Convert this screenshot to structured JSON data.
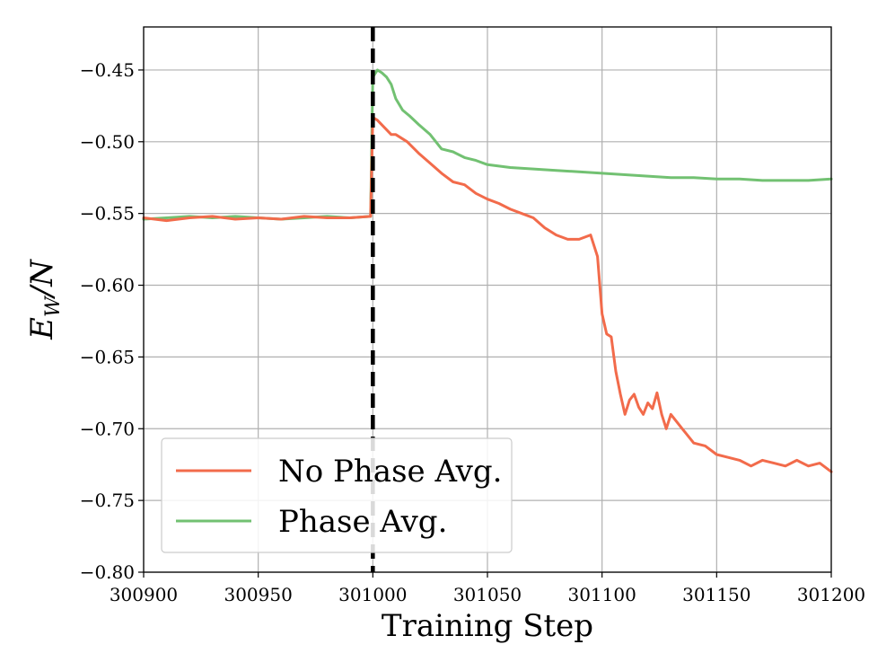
{
  "chart_data": {
    "type": "line",
    "title": "",
    "xlabel": "Training Step",
    "ylabel": "E_W/N",
    "xlim": [
      300900,
      301200
    ],
    "ylim": [
      -0.8,
      -0.42
    ],
    "xticks": [
      300900,
      300950,
      301000,
      301050,
      301100,
      301150,
      301200
    ],
    "xtick_labels": [
      "300900",
      "300950",
      "301000",
      "301050",
      "301100",
      "301150",
      "301200"
    ],
    "yticks": [
      -0.8,
      -0.75,
      -0.7,
      -0.65,
      -0.6,
      -0.55,
      -0.5,
      -0.45
    ],
    "ytick_labels": [
      "−0.80",
      "−0.75",
      "−0.70",
      "−0.65",
      "−0.60",
      "−0.55",
      "−0.50",
      "−0.45"
    ],
    "grid": true,
    "legend_position": "lower-left",
    "vline": {
      "x": 301000,
      "style": "dashed",
      "color": "#000000"
    },
    "colors": {
      "no_phase_avg": "#f26b4b",
      "phase_avg": "#72c172",
      "grid": "#b0b0b0"
    },
    "series": [
      {
        "name": "No Phase Avg.",
        "color": "#f26b4b",
        "x": [
          300900,
          300910,
          300920,
          300930,
          300940,
          300950,
          300960,
          300970,
          300980,
          300990,
          300999,
          301000,
          301002,
          301005,
          301008,
          301010,
          301015,
          301020,
          301025,
          301030,
          301035,
          301040,
          301045,
          301050,
          301055,
          301060,
          301065,
          301070,
          301075,
          301080,
          301085,
          301090,
          301095,
          301098,
          301100,
          301102,
          301104,
          301106,
          301108,
          301110,
          301112,
          301114,
          301116,
          301118,
          301120,
          301122,
          301124,
          301126,
          301128,
          301130,
          301135,
          301140,
          301145,
          301150,
          301155,
          301160,
          301165,
          301170,
          301175,
          301180,
          301185,
          301190,
          301195,
          301200
        ],
        "y": [
          -0.553,
          -0.555,
          -0.553,
          -0.552,
          -0.554,
          -0.553,
          -0.554,
          -0.552,
          -0.553,
          -0.553,
          -0.552,
          -0.483,
          -0.485,
          -0.49,
          -0.495,
          -0.495,
          -0.5,
          -0.508,
          -0.515,
          -0.522,
          -0.528,
          -0.53,
          -0.536,
          -0.54,
          -0.543,
          -0.547,
          -0.55,
          -0.553,
          -0.56,
          -0.565,
          -0.568,
          -0.568,
          -0.565,
          -0.58,
          -0.62,
          -0.634,
          -0.636,
          -0.66,
          -0.676,
          -0.69,
          -0.68,
          -0.676,
          -0.685,
          -0.69,
          -0.682,
          -0.686,
          -0.675,
          -0.69,
          -0.7,
          -0.69,
          -0.7,
          -0.71,
          -0.712,
          -0.718,
          -0.72,
          -0.722,
          -0.726,
          -0.722,
          -0.724,
          -0.726,
          -0.722,
          -0.726,
          -0.724,
          -0.73
        ]
      },
      {
        "name": "Phase Avg.",
        "color": "#72c172",
        "x": [
          300900,
          300910,
          300920,
          300930,
          300940,
          300950,
          300960,
          300970,
          300980,
          300990,
          300999,
          301000,
          301002,
          301004,
          301006,
          301008,
          301010,
          301013,
          301016,
          301020,
          301025,
          301030,
          301035,
          301040,
          301045,
          301050,
          301060,
          301070,
          301080,
          301090,
          301100,
          301110,
          301120,
          301130,
          301140,
          301150,
          301160,
          301170,
          301180,
          301190,
          301200
        ],
        "y": [
          -0.554,
          -0.553,
          -0.552,
          -0.553,
          -0.552,
          -0.553,
          -0.554,
          -0.553,
          -0.552,
          -0.553,
          -0.552,
          -0.455,
          -0.45,
          -0.452,
          -0.455,
          -0.46,
          -0.47,
          -0.478,
          -0.482,
          -0.488,
          -0.495,
          -0.505,
          -0.507,
          -0.511,
          -0.513,
          -0.516,
          -0.518,
          -0.519,
          -0.52,
          -0.521,
          -0.522,
          -0.523,
          -0.524,
          -0.525,
          -0.525,
          -0.526,
          -0.526,
          -0.527,
          -0.527,
          -0.527,
          -0.526
        ]
      }
    ]
  }
}
